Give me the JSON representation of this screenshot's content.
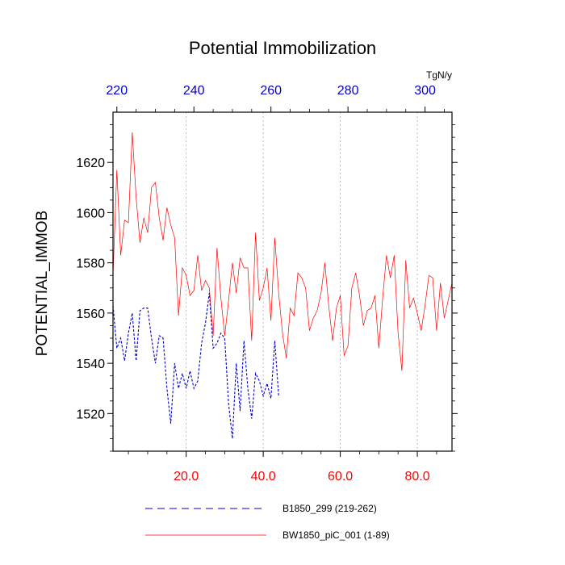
{
  "chart_data": {
    "type": "line",
    "title": "Potential Immobilization",
    "units": "TgN/y",
    "ylabel": "POTENTIAL_IMMOB",
    "xlabel": "",
    "ylim": [
      1505,
      1640
    ],
    "yticks": [
      1520,
      1540,
      1560,
      1580,
      1600,
      1620
    ],
    "ytick_labels": [
      "1520",
      "1540",
      "1560",
      "1580",
      "1600",
      "1620"
    ],
    "bottom_axis": {
      "range": [
        1,
        89
      ],
      "ticks": [
        20,
        40,
        60,
        80
      ],
      "tick_labels": [
        "20.0",
        "40.0",
        "60.0",
        "80.0"
      ],
      "color": "#ff0000"
    },
    "top_axis": {
      "range": [
        219,
        307
      ],
      "ticks": [
        220,
        240,
        260,
        280,
        300
      ],
      "tick_labels": [
        "220",
        "240",
        "260",
        "280",
        "300"
      ],
      "color": "#0000cc"
    },
    "gridlines_x": [
      20,
      40,
      60,
      80
    ],
    "legend_position": "bottom",
    "series": [
      {
        "name": "B1850_299 (219-262)",
        "color": "#0000cc",
        "dashed": true,
        "x_axis": "top",
        "x": [
          219,
          220,
          221,
          222,
          223,
          224,
          225,
          226,
          227,
          228,
          229,
          230,
          231,
          232,
          233,
          234,
          235,
          236,
          237,
          238,
          239,
          240,
          241,
          242,
          243,
          244,
          245,
          246,
          247,
          248,
          249,
          250,
          251,
          252,
          253,
          254,
          255,
          256,
          257,
          258,
          259,
          260,
          261,
          262
        ],
        "values": [
          1563,
          1546,
          1550,
          1541,
          1552,
          1560,
          1541,
          1561,
          1562,
          1562,
          1550,
          1540,
          1551,
          1550,
          1530,
          1516,
          1540,
          1530,
          1536,
          1530,
          1537,
          1530,
          1533,
          1548,
          1556,
          1568,
          1546,
          1548,
          1552,
          1550,
          1524,
          1510,
          1540,
          1521,
          1549,
          1530,
          1518,
          1536,
          1533,
          1527,
          1532,
          1526,
          1549,
          1527
        ]
      },
      {
        "name": "BW1850_piC_001 (1-89)",
        "color": "#ff0000",
        "dashed": false,
        "x_axis": "bottom",
        "x": [
          1,
          2,
          3,
          4,
          5,
          6,
          7,
          8,
          9,
          10,
          11,
          12,
          13,
          14,
          15,
          16,
          17,
          18,
          19,
          20,
          21,
          22,
          23,
          24,
          25,
          26,
          27,
          28,
          29,
          30,
          31,
          32,
          33,
          34,
          35,
          36,
          37,
          38,
          39,
          40,
          41,
          42,
          43,
          44,
          45,
          46,
          47,
          48,
          49,
          50,
          51,
          52,
          53,
          54,
          55,
          56,
          57,
          58,
          59,
          60,
          61,
          62,
          63,
          64,
          65,
          66,
          67,
          68,
          69,
          70,
          71,
          72,
          73,
          74,
          75,
          76,
          77,
          78,
          79,
          80,
          81,
          82,
          83,
          84,
          85,
          86,
          87,
          88,
          89
        ],
        "values": [
          1575,
          1617,
          1583,
          1597,
          1596,
          1632,
          1606,
          1588,
          1598,
          1592,
          1610,
          1612,
          1598,
          1589,
          1602,
          1595,
          1590,
          1559,
          1578,
          1575,
          1567,
          1569,
          1583,
          1569,
          1573,
          1570,
          1551,
          1586,
          1566,
          1551,
          1565,
          1580,
          1568,
          1582,
          1578,
          1578,
          1549,
          1592,
          1565,
          1570,
          1578,
          1557,
          1590,
          1568,
          1552,
          1542,
          1562,
          1559,
          1576,
          1574,
          1570,
          1553,
          1558,
          1561,
          1568,
          1580,
          1563,
          1549,
          1562,
          1567,
          1543,
          1547,
          1570,
          1576,
          1567,
          1555,
          1561,
          1562,
          1567,
          1546,
          1566,
          1583,
          1574,
          1583,
          1552,
          1537,
          1581,
          1562,
          1566,
          1560,
          1553,
          1563,
          1575,
          1574,
          1553,
          1572,
          1558,
          1565,
          1572
        ]
      }
    ]
  }
}
